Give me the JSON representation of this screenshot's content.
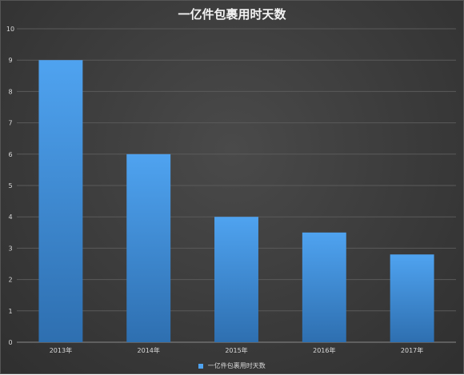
{
  "chart_data": {
    "type": "bar",
    "title": "一亿件包裹用时天数",
    "categories": [
      "2013年",
      "2014年",
      "2015年",
      "2016年",
      "2017年"
    ],
    "series": [
      {
        "name": "一亿件包裹用时天数",
        "values": [
          9,
          6,
          4,
          3.5,
          2.8
        ]
      }
    ],
    "ylim": [
      0,
      10
    ],
    "yticks": [
      0,
      1,
      2,
      3,
      4,
      5,
      6,
      7,
      8,
      9,
      10
    ],
    "grid": true,
    "legend_position": "bottom",
    "colors": {
      "bar_top": "#4fa3f0",
      "bar_bottom": "#2e6fb0",
      "grid": "#5a5a5a",
      "axis": "#8a8a8a"
    }
  }
}
